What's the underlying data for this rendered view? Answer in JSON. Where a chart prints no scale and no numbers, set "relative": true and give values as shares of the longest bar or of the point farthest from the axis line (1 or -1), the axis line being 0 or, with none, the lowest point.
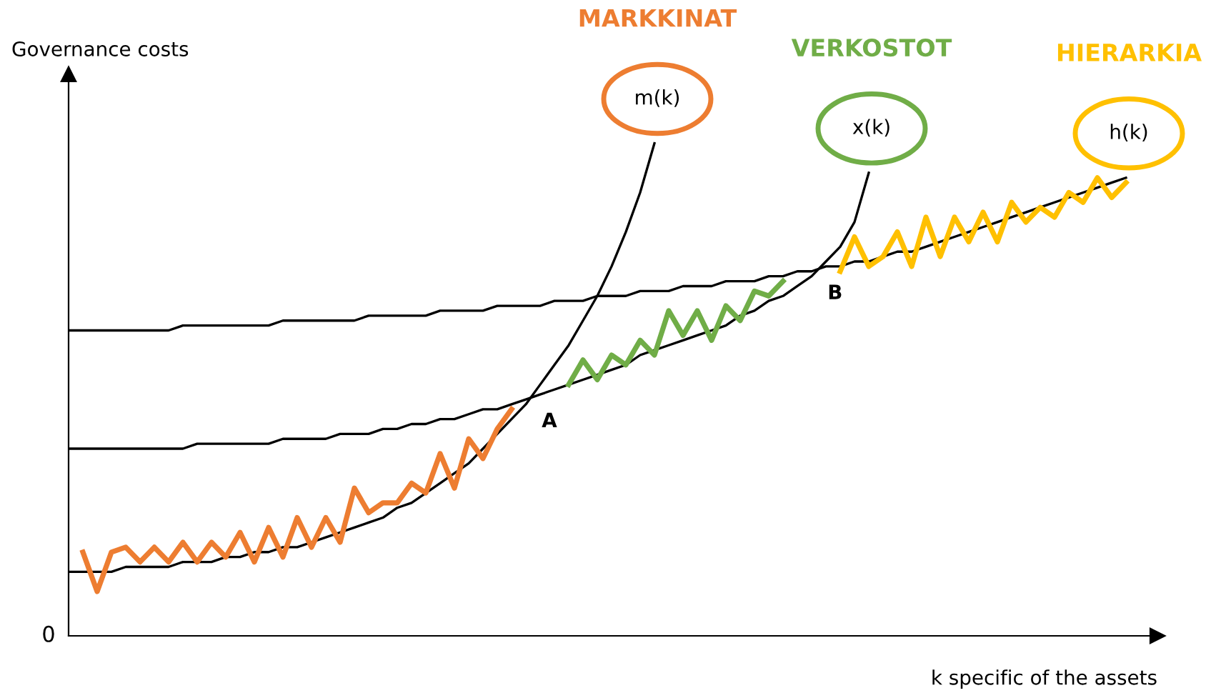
{
  "chart_data": {
    "type": "line",
    "relative": true,
    "xlabel": "k specific of the assets",
    "ylabel": "Governance costs",
    "grid": false,
    "legend": false,
    "marker": "none",
    "line_style": "solid",
    "categories": [
      null,
      null,
      null,
      null,
      null,
      null,
      null,
      null,
      null,
      null,
      null,
      null,
      null,
      null,
      null,
      null,
      null,
      null,
      null,
      null,
      null,
      null,
      null,
      null,
      null,
      null,
      null,
      null,
      null,
      null,
      null,
      null,
      null,
      null,
      null,
      null,
      null,
      null,
      null,
      null,
      null,
      null,
      null,
      null,
      null,
      null,
      null,
      null,
      null,
      null,
      null,
      null,
      null,
      null,
      null,
      null,
      null,
      null,
      null,
      null,
      null,
      null,
      null,
      null,
      null,
      null,
      null,
      null,
      null,
      null,
      null,
      null,
      null,
      null,
      null,
      null
    ],
    "series": [
      {
        "name": "m(k)",
        "color": "#000000",
        "values": [
          0.13,
          0.13,
          0.13,
          0.13,
          0.14,
          0.14,
          0.14,
          0.14,
          0.15,
          0.15,
          0.15,
          0.16,
          0.16,
          0.17,
          0.17,
          0.18,
          0.18,
          0.19,
          0.2,
          0.21,
          0.22,
          0.23,
          0.24,
          0.26,
          0.27,
          0.29,
          0.31,
          0.33,
          0.35,
          0.38,
          0.41,
          0.44,
          0.47,
          0.51,
          0.55,
          0.59,
          0.64,
          0.69,
          0.75,
          0.82,
          0.9,
          1.0,
          null,
          null,
          null,
          null,
          null,
          null,
          null,
          null,
          null,
          null,
          null,
          null,
          null,
          null,
          null,
          null,
          null,
          null,
          null,
          null,
          null,
          null,
          null,
          null,
          null,
          null,
          null,
          null,
          null,
          null,
          null,
          null,
          null,
          null
        ]
      },
      {
        "name": "x(k)",
        "color": "#000000",
        "values": [
          0.38,
          0.38,
          0.38,
          0.38,
          0.38,
          0.38,
          0.38,
          0.38,
          0.38,
          0.39,
          0.39,
          0.39,
          0.39,
          0.39,
          0.39,
          0.4,
          0.4,
          0.4,
          0.4,
          0.41,
          0.41,
          0.41,
          0.42,
          0.42,
          0.43,
          0.43,
          0.44,
          0.44,
          0.45,
          0.46,
          0.46,
          0.47,
          0.48,
          0.49,
          0.5,
          0.51,
          0.52,
          0.53,
          0.54,
          0.55,
          0.57,
          0.58,
          0.59,
          0.6,
          0.61,
          0.62,
          0.63,
          0.65,
          0.66,
          0.68,
          0.69,
          0.71,
          0.73,
          0.76,
          0.79,
          0.84,
          0.94,
          null,
          null,
          null,
          null,
          null,
          null,
          null,
          null,
          null,
          null,
          null,
          null,
          null,
          null,
          null,
          null,
          null,
          null,
          null
        ]
      },
      {
        "name": "h(k)",
        "color": "#000000",
        "values": [
          0.62,
          0.62,
          0.62,
          0.62,
          0.62,
          0.62,
          0.62,
          0.62,
          0.63,
          0.63,
          0.63,
          0.63,
          0.63,
          0.63,
          0.63,
          0.64,
          0.64,
          0.64,
          0.64,
          0.64,
          0.64,
          0.65,
          0.65,
          0.65,
          0.65,
          0.65,
          0.66,
          0.66,
          0.66,
          0.66,
          0.67,
          0.67,
          0.67,
          0.67,
          0.68,
          0.68,
          0.68,
          0.69,
          0.69,
          0.69,
          0.7,
          0.7,
          0.7,
          0.71,
          0.71,
          0.71,
          0.72,
          0.72,
          0.72,
          0.73,
          0.73,
          0.74,
          0.74,
          0.75,
          0.75,
          0.76,
          0.76,
          0.77,
          0.78,
          0.78,
          0.79,
          0.8,
          0.81,
          0.82,
          0.83,
          0.84,
          0.85,
          0.86,
          0.87,
          0.88,
          0.89,
          0.9,
          0.91,
          0.92,
          0.93,
          null
        ]
      },
      {
        "name": "MARKKINAT",
        "color": "#ed7d31",
        "values": [
          null,
          0.17,
          0.09,
          0.17,
          0.18,
          0.15,
          0.18,
          0.15,
          0.19,
          0.15,
          0.19,
          0.16,
          0.21,
          0.15,
          0.22,
          0.16,
          0.24,
          0.18,
          0.24,
          0.19,
          0.3,
          0.25,
          0.27,
          0.27,
          0.31,
          0.29,
          0.37,
          0.3,
          0.4,
          0.36,
          0.42,
          0.46,
          null,
          null,
          null,
          null,
          null,
          null,
          null,
          null,
          null,
          null,
          null,
          null,
          null,
          null,
          null,
          null,
          null,
          null,
          null,
          null,
          null,
          null,
          null,
          null,
          null,
          null,
          null,
          null,
          null,
          null,
          null,
          null,
          null,
          null,
          null,
          null,
          null,
          null,
          null,
          null,
          null,
          null,
          null,
          null
        ]
      },
      {
        "name": "VERKOSTOT",
        "color": "#70ad47",
        "values": [
          null,
          null,
          null,
          null,
          null,
          null,
          null,
          null,
          null,
          null,
          null,
          null,
          null,
          null,
          null,
          null,
          null,
          null,
          null,
          null,
          null,
          null,
          null,
          null,
          null,
          null,
          null,
          null,
          null,
          null,
          null,
          null,
          null,
          null,
          null,
          0.51,
          0.56,
          0.52,
          0.57,
          0.55,
          0.6,
          0.57,
          0.66,
          0.61,
          0.66,
          0.6,
          0.67,
          0.64,
          0.7,
          0.69,
          0.72,
          null,
          null,
          null,
          null,
          null,
          null,
          null,
          null,
          null,
          null,
          null,
          null,
          null,
          null,
          null,
          null,
          null,
          null,
          null,
          null,
          null,
          null,
          null,
          null,
          null
        ]
      },
      {
        "name": "HIERARKIA",
        "color": "#ffc000",
        "values": [
          null,
          null,
          null,
          null,
          null,
          null,
          null,
          null,
          null,
          null,
          null,
          null,
          null,
          null,
          null,
          null,
          null,
          null,
          null,
          null,
          null,
          null,
          null,
          null,
          null,
          null,
          null,
          null,
          null,
          null,
          null,
          null,
          null,
          null,
          null,
          null,
          null,
          null,
          null,
          null,
          null,
          null,
          null,
          null,
          null,
          null,
          null,
          null,
          null,
          null,
          null,
          null,
          null,
          null,
          0.74,
          0.81,
          0.75,
          0.77,
          0.82,
          0.75,
          0.85,
          0.77,
          0.85,
          0.8,
          0.86,
          0.8,
          0.88,
          0.84,
          0.87,
          0.85,
          0.9,
          0.88,
          0.93,
          0.89,
          0.92,
          null
        ]
      }
    ],
    "annotations": [
      "A",
      "B",
      "0"
    ]
  }
}
